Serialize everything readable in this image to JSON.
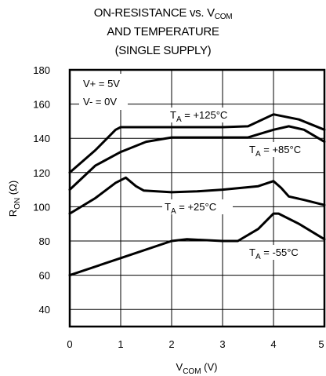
{
  "chart_data": {
    "type": "line",
    "title": {
      "line1_prefix": "ON-RESISTANCE vs. V",
      "line1_sub": "COM",
      "line2": "AND TEMPERATURE",
      "line3": "(SINGLE SUPPLY)"
    },
    "xlabel": {
      "main": "V",
      "sub": "COM",
      "unit": " (V)"
    },
    "ylabel": {
      "main": "R",
      "sub": "ON",
      "unit": " (Ω)"
    },
    "xlim": [
      0,
      5
    ],
    "ylim": [
      30,
      180
    ],
    "x_ticks": [
      "0",
      "1",
      "2",
      "3",
      "4",
      "5"
    ],
    "y_ticks": [
      "180",
      "160",
      "140",
      "120",
      "100",
      "80",
      "60",
      "40"
    ],
    "grid": true,
    "annotations": {
      "supply_line1": "V+ = 5V",
      "supply_line2": "V- = 0V"
    },
    "series": [
      {
        "label_main": "T",
        "label_sub": "A",
        "label_rest": " = +125°C",
        "points": [
          [
            0,
            120
          ],
          [
            0.5,
            133
          ],
          [
            0.9,
            145
          ],
          [
            1.0,
            146.5
          ],
          [
            2.0,
            146.5
          ],
          [
            3.0,
            146.5
          ],
          [
            3.5,
            147
          ],
          [
            4.0,
            154
          ],
          [
            4.5,
            151
          ],
          [
            5.0,
            145
          ]
        ]
      },
      {
        "label_main": "T",
        "label_sub": "A",
        "label_rest": " = +85°C",
        "points": [
          [
            0,
            110
          ],
          [
            0.5,
            124
          ],
          [
            1.0,
            132
          ],
          [
            1.5,
            138
          ],
          [
            2.0,
            140.5
          ],
          [
            3.0,
            140.5
          ],
          [
            3.5,
            140.5
          ],
          [
            4.0,
            145
          ],
          [
            4.3,
            147
          ],
          [
            4.6,
            145
          ],
          [
            5.0,
            138
          ]
        ]
      },
      {
        "label_main": "T",
        "label_sub": "A",
        "label_rest": " = +25°C",
        "points": [
          [
            0,
            96
          ],
          [
            0.5,
            105
          ],
          [
            0.9,
            114
          ],
          [
            1.1,
            117
          ],
          [
            1.3,
            112
          ],
          [
            1.45,
            109.5
          ],
          [
            2.0,
            108.5
          ],
          [
            2.5,
            109
          ],
          [
            3.0,
            110
          ],
          [
            3.7,
            112
          ],
          [
            4.0,
            115
          ],
          [
            4.15,
            111
          ],
          [
            4.3,
            106
          ],
          [
            4.6,
            104
          ],
          [
            5.0,
            101
          ]
        ]
      },
      {
        "label_main": "T",
        "label_sub": "A",
        "label_rest": " = -55°C",
        "points": [
          [
            0,
            60
          ],
          [
            1.0,
            70
          ],
          [
            2.0,
            80
          ],
          [
            2.3,
            81
          ],
          [
            3.0,
            80
          ],
          [
            3.3,
            80
          ],
          [
            3.7,
            87
          ],
          [
            4.0,
            96
          ],
          [
            4.1,
            96
          ],
          [
            4.5,
            90
          ],
          [
            5.0,
            81
          ]
        ]
      }
    ]
  }
}
